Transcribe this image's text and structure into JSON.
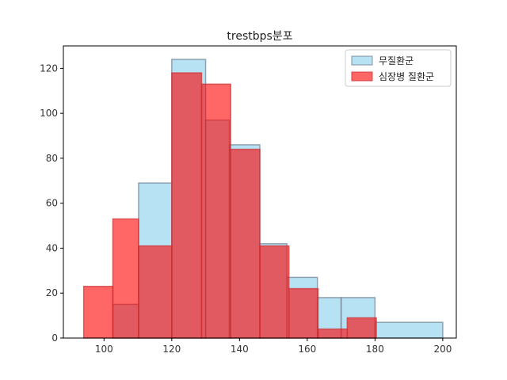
{
  "chart_data": {
    "type": "bar",
    "title": "trestbps분포",
    "xlabel": "",
    "ylabel": "",
    "xlim": [
      88,
      204
    ],
    "ylim": [
      0,
      130
    ],
    "xticks": [
      "100",
      "120",
      "140",
      "160",
      "180",
      "200"
    ],
    "yticks": [
      "0",
      "20",
      "40",
      "60",
      "80",
      "100",
      "120"
    ],
    "grid": false,
    "legend_position": "top-right",
    "series": [
      {
        "name": "무질환군",
        "color": "#87ceeb",
        "edge_color": "#708090",
        "bins": [
          {
            "x0": 94,
            "x1": 102.6,
            "count": 0
          },
          {
            "x0": 102.6,
            "x1": 110.2,
            "count": 15
          },
          {
            "x0": 110.2,
            "x1": 120,
            "count": 69
          },
          {
            "x0": 120,
            "x1": 130,
            "count": 124
          },
          {
            "x0": 130,
            "x1": 137,
            "count": 97
          },
          {
            "x0": 137,
            "x1": 146,
            "count": 86
          },
          {
            "x0": 146,
            "x1": 154,
            "count": 42
          },
          {
            "x0": 154,
            "x1": 163,
            "count": 27
          },
          {
            "x0": 163,
            "x1": 170,
            "count": 18
          },
          {
            "x0": 170,
            "x1": 180,
            "count": 18
          },
          {
            "x0": 180,
            "x1": 200,
            "count": 7
          }
        ]
      },
      {
        "name": "심장병 질환군",
        "color": "#ff0000",
        "edge_color": "#cc3333",
        "bins": [
          {
            "x0": 94,
            "x1": 102.6,
            "count": 23
          },
          {
            "x0": 102.6,
            "x1": 110.2,
            "count": 53
          },
          {
            "x0": 110.2,
            "x1": 120,
            "count": 41
          },
          {
            "x0": 120,
            "x1": 128.8,
            "count": 118
          },
          {
            "x0": 128.8,
            "x1": 137.4,
            "count": 113
          },
          {
            "x0": 137.4,
            "x1": 146,
            "count": 84
          },
          {
            "x0": 146,
            "x1": 154.6,
            "count": 41
          },
          {
            "x0": 154.6,
            "x1": 163.2,
            "count": 22
          },
          {
            "x0": 163.2,
            "x1": 171.8,
            "count": 4
          },
          {
            "x0": 171.8,
            "x1": 180.4,
            "count": 9
          }
        ]
      }
    ]
  }
}
